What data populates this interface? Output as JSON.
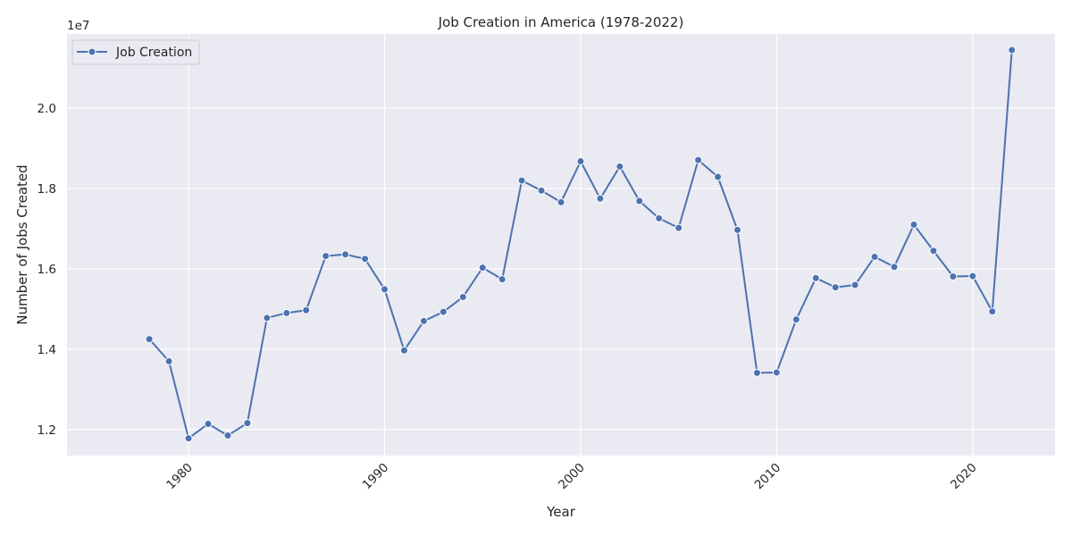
{
  "chart_data": {
    "type": "line",
    "title": "Job Creation in America (1978-2022)",
    "xlabel": "Year",
    "ylabel": "Number of Jobs Created",
    "y_offset_label": "1e7",
    "xlim": [
      1973.8,
      2024.2
    ],
    "ylim": [
      11350000,
      21850000
    ],
    "x_ticks": [
      1980,
      1990,
      2000,
      2010,
      2020
    ],
    "y_ticks": [
      12000000,
      14000000,
      16000000,
      18000000,
      20000000
    ],
    "y_tick_labels": [
      "1.2",
      "1.4",
      "1.6",
      "1.8",
      "2.0"
    ],
    "grid": true,
    "legend_position": "top-left",
    "colors": {
      "background": "#eaeaf2",
      "series": "#4c72b0",
      "grid": "#ffffff"
    },
    "series": [
      {
        "name": "Job Creation",
        "x": [
          1978,
          1979,
          1980,
          1981,
          1982,
          1983,
          1984,
          1985,
          1986,
          1987,
          1988,
          1989,
          1990,
          1991,
          1992,
          1993,
          1994,
          1995,
          1996,
          1997,
          1998,
          1999,
          2000,
          2001,
          2002,
          2003,
          2004,
          2005,
          2006,
          2007,
          2008,
          2009,
          2010,
          2011,
          2012,
          2013,
          2014,
          2015,
          2016,
          2017,
          2018,
          2019,
          2020,
          2021,
          2022
        ],
        "values": [
          14250000,
          13700000,
          11780000,
          12140000,
          11850000,
          12160000,
          14780000,
          14900000,
          14970000,
          16320000,
          16360000,
          16250000,
          15490000,
          13970000,
          14700000,
          14930000,
          15300000,
          16030000,
          15740000,
          18200000,
          17950000,
          17660000,
          18680000,
          17750000,
          18550000,
          17690000,
          17260000,
          17020000,
          18710000,
          18290000,
          16970000,
          13410000,
          13420000,
          14740000,
          15770000,
          15540000,
          15600000,
          16300000,
          16050000,
          17100000,
          16450000,
          15810000,
          15820000,
          14940000,
          21450000
        ]
      }
    ]
  }
}
